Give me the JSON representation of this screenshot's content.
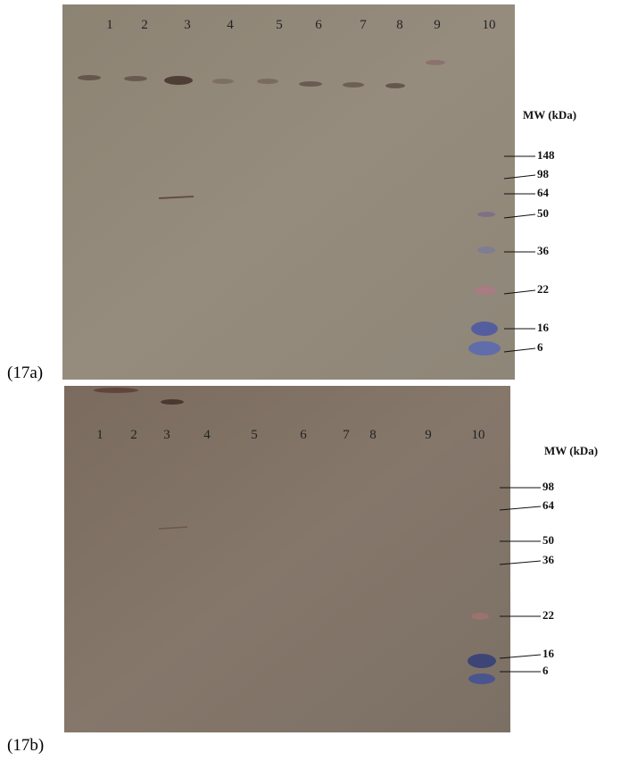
{
  "panels": [
    {
      "label": "(17a)",
      "lanes": [
        "1",
        "2",
        "3",
        "4",
        "5",
        "6",
        "7",
        "8",
        "9",
        "10"
      ],
      "mw_title": "MW (kDa)",
      "markers": [
        "148",
        "98",
        "64",
        "50",
        "36",
        "22",
        "16",
        "6"
      ]
    },
    {
      "label": "(17b)",
      "lanes": [
        "1",
        "2",
        "3",
        "4",
        "5",
        "6",
        "7",
        "8",
        "9",
        "10"
      ],
      "mw_title": "MW (kDa)",
      "markers": [
        "98",
        "64",
        "50",
        "36",
        "22",
        "16",
        "6"
      ]
    }
  ]
}
